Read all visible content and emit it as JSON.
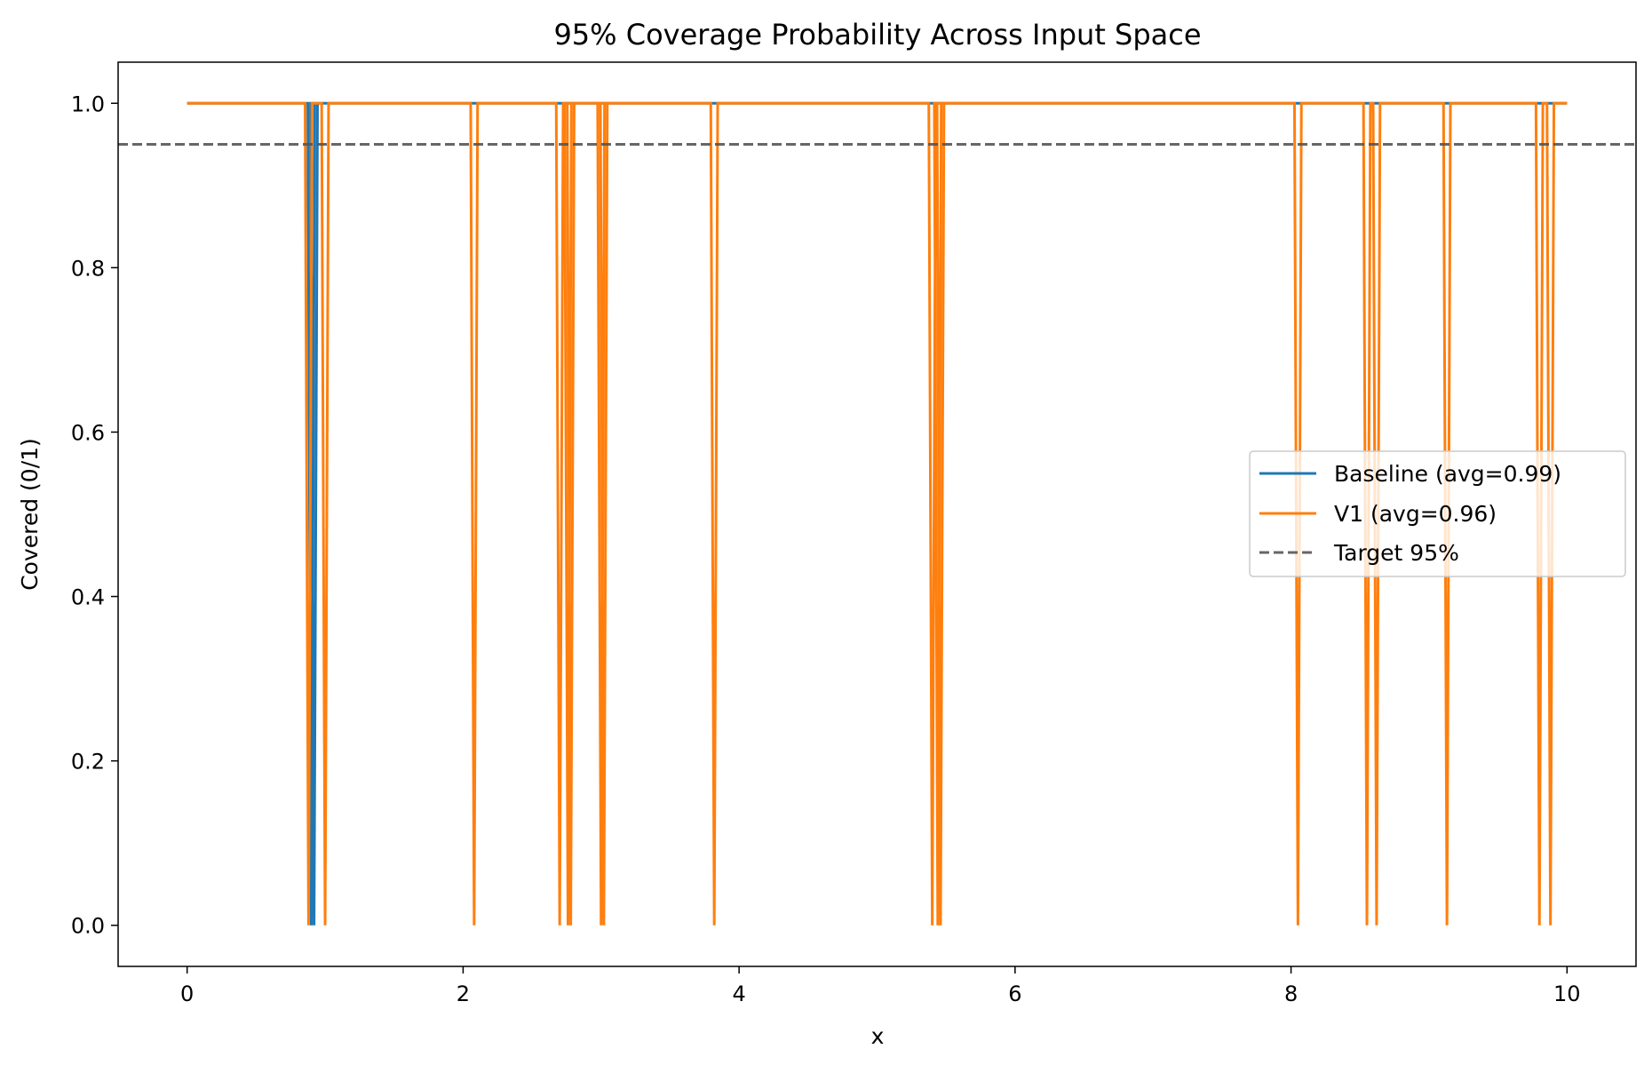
{
  "chart_data": {
    "type": "line",
    "title": "95% Coverage Probability Across Input Space",
    "xlabel": "x",
    "ylabel": "Covered (0/1)",
    "xlim": [
      -0.5,
      10.5
    ],
    "ylim": [
      -0.05,
      1.05
    ],
    "x_ticks": [
      0,
      2,
      4,
      6,
      8,
      10
    ],
    "x_tick_labels": [
      "0",
      "2",
      "4",
      "6",
      "8",
      "10"
    ],
    "y_ticks": [
      0.0,
      0.2,
      0.4,
      0.6,
      0.8,
      1.0
    ],
    "y_tick_labels": [
      "0.0",
      "0.2",
      "0.4",
      "0.6",
      "0.8",
      "1.0"
    ],
    "grid": false,
    "legend_position": "center-right",
    "x_range": [
      0,
      10
    ],
    "series": [
      {
        "name": "Baseline (avg=0.99)",
        "color": "#1f77b4",
        "value_default": 1,
        "zero_at_x": [
          0.9,
          0.92
        ]
      },
      {
        "name": "V1 (avg=0.96)",
        "color": "#ff7f0e",
        "value_default": 1,
        "zero_at_x": [
          0.88,
          1.0,
          2.08,
          2.7,
          2.76,
          2.78,
          3.0,
          3.02,
          3.82,
          5.4,
          5.44,
          5.46,
          8.05,
          8.55,
          8.62,
          9.13,
          9.8,
          9.88
        ]
      }
    ],
    "reference_lines": [
      {
        "name": "Target 95%",
        "y": 0.95,
        "color": "#555555",
        "style": "dashed"
      }
    ]
  }
}
